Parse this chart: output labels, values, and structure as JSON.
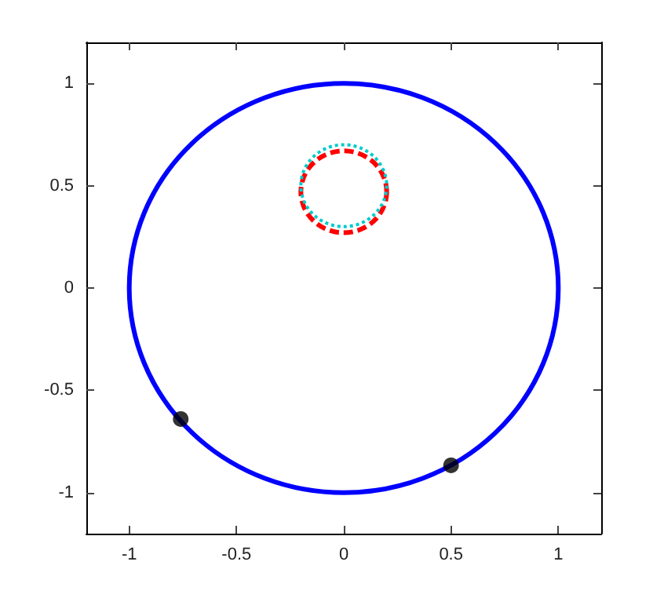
{
  "chart_data": {
    "type": "scatter",
    "xlim": [
      -1.2,
      1.2
    ],
    "ylim": [
      -1.2,
      1.2
    ],
    "xticks": [
      -1,
      -0.5,
      0,
      0.5,
      1
    ],
    "yticks": [
      -1,
      -0.5,
      0,
      0.5,
      1
    ],
    "grid": false,
    "marker": "circle",
    "series": [
      {
        "color": "#000000",
        "x": [
          -0.76,
          0.5
        ],
        "values": [
          -0.64,
          -0.866
        ]
      }
    ]
  }
}
